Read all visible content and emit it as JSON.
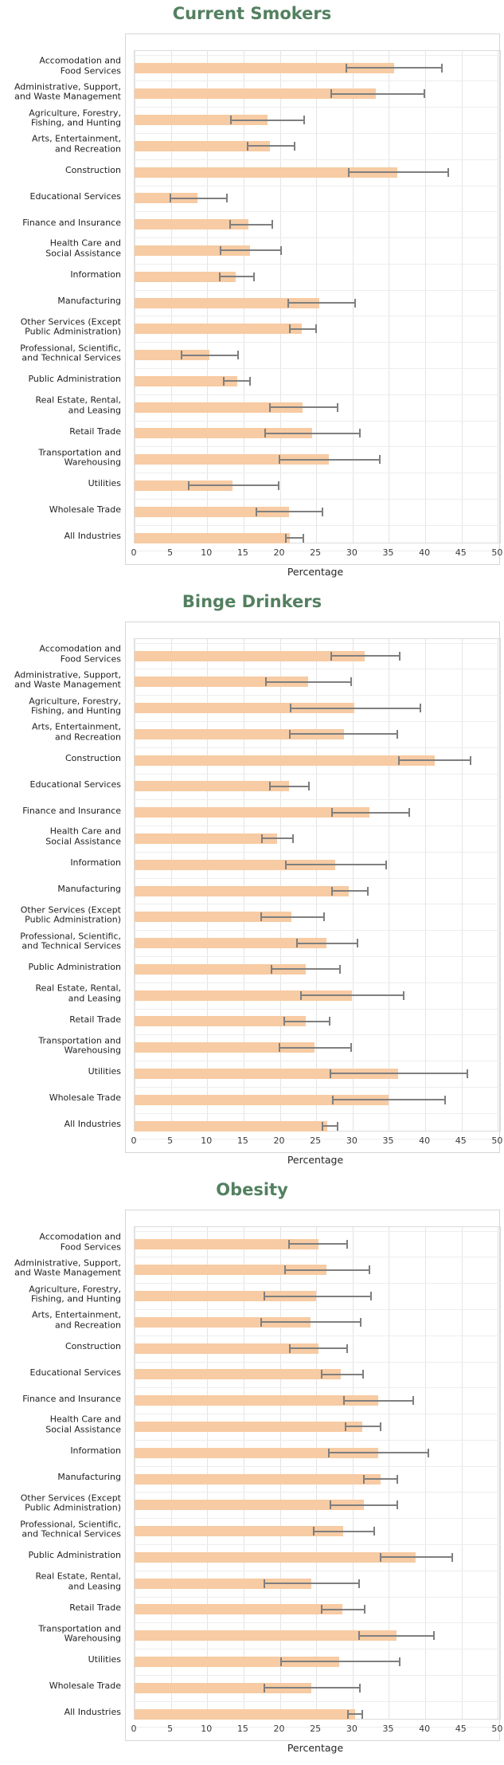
{
  "colors": {
    "bar_fill": "#F7CBA3",
    "error_bar": "#7F7F7F",
    "gridline": "#E4E4E4",
    "row_separator": "#EDEDEF",
    "plot_border": "#DCDCDC",
    "card_border": "#D6D6D6",
    "title_green": "#538060",
    "tick_text": "#3A3A3A",
    "label_text": "#1F1F1F"
  },
  "categories": [
    "Accomodation and\nFood Services",
    "Administrative, Support,\nand Waste Management",
    "Agriculture, Forestry,\nFishing, and Hunting",
    "Arts, Entertainment,\nand Recreation",
    "Construction",
    "Educational Services",
    "Finance and Insurance",
    "Health Care and\nSocial Assistance",
    "Information",
    "Manufacturing",
    "Other Services (Except\nPublic Administration)",
    "Professional, Scientific,\nand Technical Services",
    "Public Administration",
    "Real Estate, Rental,\nand Leasing",
    "Retail Trade",
    "Transportation and\nWarehousing",
    "Utilities",
    "Wholesale Trade",
    "All Industries"
  ],
  "chart_data": [
    {
      "type": "bar",
      "orientation": "horizontal",
      "title": "Current Smokers",
      "xlabel": "Percentage",
      "xlim": [
        0,
        50
      ],
      "xticks": [
        0,
        5,
        10,
        15,
        20,
        25,
        30,
        35,
        40,
        45,
        50
      ],
      "grid": true,
      "categories_ref": "categories",
      "series": [
        {
          "name": "percentage",
          "values": [
            35.7,
            33.2,
            18.3,
            18.6,
            36.2,
            8.7,
            15.7,
            15.9,
            13.9,
            25.4,
            23.0,
            10.3,
            14.1,
            23.1,
            24.4,
            26.7,
            13.5,
            21.3,
            21.4
          ]
        },
        {
          "name": "ci_low",
          "values": [
            29.0,
            26.9,
            13.2,
            15.5,
            29.4,
            4.8,
            13.0,
            11.7,
            11.6,
            21.0,
            21.2,
            6.4,
            12.2,
            18.5,
            17.9,
            19.8,
            7.3,
            16.6,
            20.7
          ]
        },
        {
          "name": "ci_high",
          "values": [
            42.3,
            39.9,
            23.3,
            22.0,
            43.2,
            12.7,
            18.9,
            20.2,
            16.4,
            30.3,
            25.0,
            14.2,
            15.9,
            27.9,
            31.0,
            33.7,
            19.8,
            25.8,
            23.2
          ]
        }
      ]
    },
    {
      "type": "bar",
      "orientation": "horizontal",
      "title": "Binge Drinkers",
      "xlabel": "Percentage",
      "xlim": [
        0,
        50
      ],
      "xticks": [
        0,
        5,
        10,
        15,
        20,
        25,
        30,
        35,
        40,
        45,
        50
      ],
      "grid": true,
      "categories_ref": "categories",
      "series": [
        {
          "name": "percentage",
          "values": [
            31.7,
            23.9,
            30.2,
            28.8,
            41.3,
            21.2,
            32.3,
            19.6,
            27.6,
            29.5,
            21.6,
            26.4,
            23.5,
            29.9,
            23.6,
            24.8,
            36.3,
            35.0,
            26.5
          ]
        },
        {
          "name": "ci_low",
          "values": [
            27.0,
            18.0,
            21.4,
            21.3,
            36.3,
            18.5,
            27.1,
            17.4,
            20.7,
            27.1,
            17.3,
            22.2,
            18.7,
            22.8,
            20.5,
            19.8,
            26.8,
            27.2,
            25.7
          ]
        },
        {
          "name": "ci_high",
          "values": [
            36.5,
            29.8,
            39.3,
            36.2,
            46.2,
            24.0,
            37.8,
            21.8,
            34.6,
            32.1,
            26.1,
            30.7,
            28.3,
            37.0,
            26.8,
            29.8,
            45.8,
            42.7,
            27.9
          ]
        }
      ]
    },
    {
      "type": "bar",
      "orientation": "horizontal",
      "title": "Obesity",
      "xlabel": "Percentage",
      "xlim": [
        0,
        50
      ],
      "xticks": [
        0,
        5,
        10,
        15,
        20,
        25,
        30,
        35,
        40,
        45,
        50
      ],
      "grid": true,
      "categories_ref": "categories",
      "series": [
        {
          "name": "percentage",
          "values": [
            25.3,
            26.4,
            25.0,
            24.2,
            25.3,
            28.4,
            33.5,
            31.3,
            33.5,
            33.8,
            31.5,
            28.7,
            38.7,
            24.3,
            28.6,
            36.0,
            28.2,
            24.3,
            30.3
          ]
        },
        {
          "name": "ci_low",
          "values": [
            21.1,
            20.6,
            17.8,
            17.3,
            21.2,
            25.6,
            28.7,
            28.9,
            26.6,
            31.4,
            26.8,
            24.5,
            33.7,
            17.8,
            25.6,
            30.8,
            20.0,
            17.7,
            29.3
          ]
        },
        {
          "name": "ci_high",
          "values": [
            29.3,
            32.3,
            32.5,
            31.1,
            29.3,
            31.4,
            38.3,
            33.8,
            40.4,
            36.2,
            36.2,
            33.0,
            43.7,
            30.9,
            31.7,
            41.2,
            36.5,
            31.0,
            31.3
          ]
        }
      ]
    }
  ]
}
